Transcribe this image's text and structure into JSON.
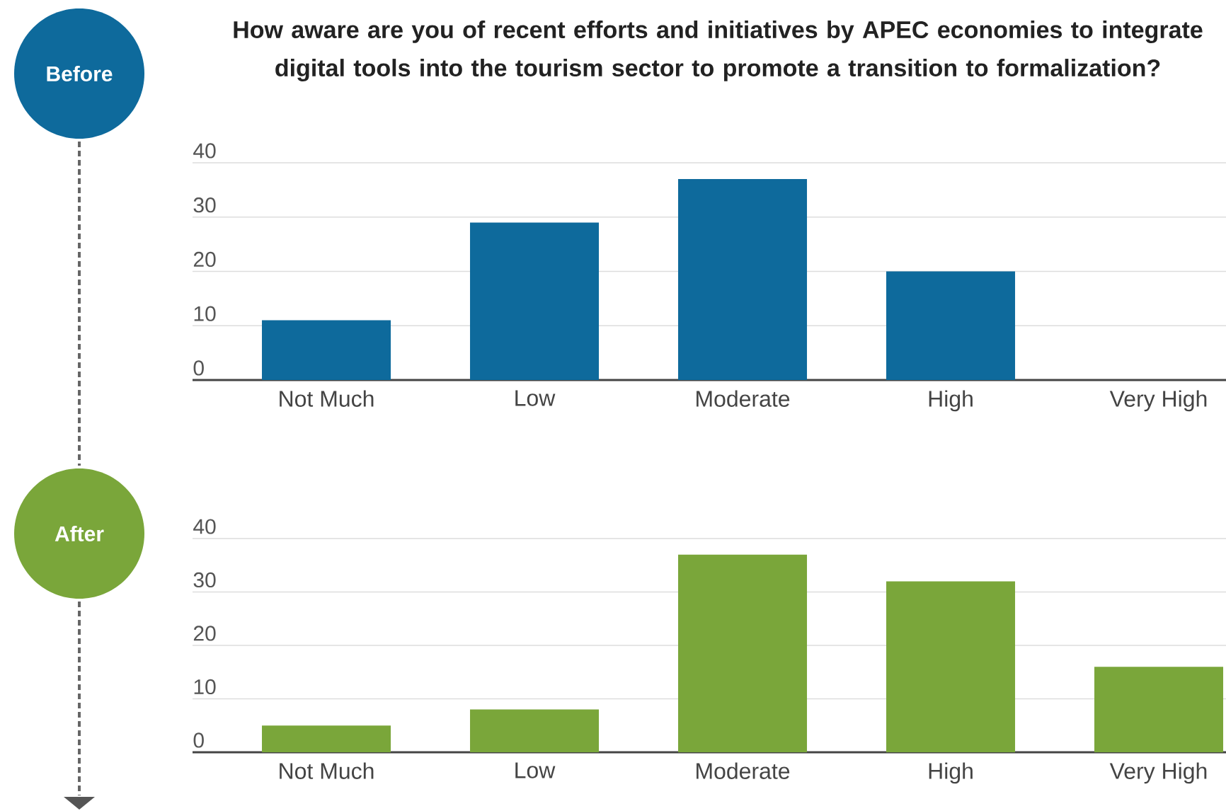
{
  "chart_data": [
    {
      "type": "bar",
      "title": "How aware are you of recent efforts and initiatives by APEC economies to integrate digital tools into the tourism sector to promote a transition to formalization?",
      "annotations": [
        "Before"
      ],
      "categories": [
        "Not Much",
        "Low",
        "Moderate",
        "High",
        "Very High"
      ],
      "values": [
        11,
        29,
        37,
        20,
        0
      ],
      "color": "#0e6a9c",
      "ylim": [
        0,
        40
      ],
      "yticks": [
        0,
        10,
        20,
        30,
        40
      ],
      "grid": "y"
    },
    {
      "type": "bar",
      "annotations": [
        "After"
      ],
      "categories": [
        "Not Much",
        "Low",
        "Moderate",
        "High",
        "Very High"
      ],
      "values": [
        5,
        8,
        37,
        32,
        16
      ],
      "color": "#7aa63a",
      "ylim": [
        0,
        40
      ],
      "yticks": [
        0,
        10,
        20,
        30,
        40
      ],
      "grid": "y"
    }
  ]
}
